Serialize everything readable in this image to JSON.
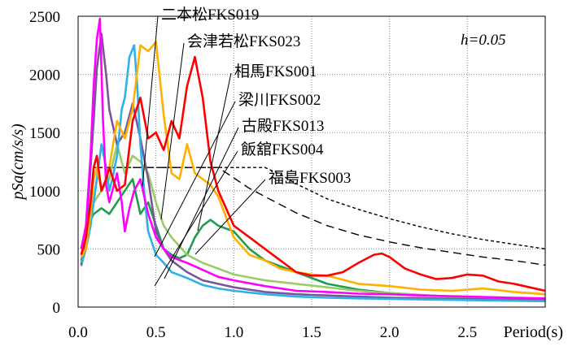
{
  "chart_data": {
    "type": "line",
    "xlabel": "Period(s)",
    "ylabel": "pSa(cm/s/s)",
    "xlim": [
      0,
      3.0
    ],
    "ylim": [
      0,
      2500
    ],
    "x_ticks": [
      "0.0",
      "0.5",
      "1.0",
      "1.5",
      "2.0",
      "2.5"
    ],
    "y_ticks": [
      "0",
      "500",
      "1000",
      "1500",
      "2000",
      "2500"
    ],
    "grid": "dotted",
    "annotation": "h=0.05",
    "series": [
      {
        "name": "二本松FKS019",
        "color": "#ff00ff",
        "label_at": [
          0.37,
          2180
        ],
        "x": [
          0.02,
          0.05,
          0.08,
          0.1,
          0.12,
          0.14,
          0.16,
          0.18,
          0.2,
          0.22,
          0.25,
          0.28,
          0.3,
          0.33,
          0.36,
          0.4,
          0.45,
          0.5,
          0.55,
          0.6,
          0.7,
          0.8,
          0.9,
          1.0,
          1.2,
          1.4,
          1.6,
          1.8,
          2.0,
          2.2,
          2.5,
          2.8,
          3.0
        ],
        "y": [
          500,
          700,
          1300,
          1900,
          2300,
          2480,
          1600,
          1050,
          900,
          1000,
          1150,
          900,
          650,
          850,
          1000,
          1100,
          800,
          600,
          500,
          430,
          380,
          320,
          260,
          230,
          180,
          140,
          130,
          115,
          110,
          100,
          90,
          80,
          75
        ]
      },
      {
        "name": "会津若松FKS023",
        "color": "#ffb000",
        "label_at": [
          0.55,
          2070
        ],
        "x": [
          0.02,
          0.05,
          0.08,
          0.1,
          0.12,
          0.15,
          0.18,
          0.2,
          0.25,
          0.3,
          0.35,
          0.4,
          0.45,
          0.5,
          0.55,
          0.6,
          0.65,
          0.7,
          0.75,
          0.8,
          0.85,
          0.9,
          1.0,
          1.1,
          1.2,
          1.3,
          1.4,
          1.5,
          1.6,
          1.8,
          2.0,
          2.2,
          2.4,
          2.6,
          2.8,
          3.0
        ],
        "y": [
          430,
          500,
          800,
          1100,
          1200,
          1000,
          1100,
          1200,
          1600,
          1450,
          1700,
          2250,
          2200,
          2280,
          1650,
          1150,
          1100,
          1400,
          1150,
          1100,
          1050,
          950,
          600,
          450,
          400,
          330,
          300,
          280,
          270,
          200,
          180,
          150,
          140,
          160,
          130,
          110
        ]
      },
      {
        "name": "相馬FKS001",
        "color": "#ff0000",
        "label_at": [
          0.8,
          1920
        ],
        "x": [
          0.02,
          0.05,
          0.08,
          0.1,
          0.12,
          0.15,
          0.18,
          0.2,
          0.25,
          0.3,
          0.35,
          0.4,
          0.45,
          0.5,
          0.55,
          0.6,
          0.65,
          0.7,
          0.75,
          0.8,
          0.85,
          0.9,
          1.0,
          1.1,
          1.2,
          1.3,
          1.4,
          1.5,
          1.6,
          1.7,
          1.8,
          1.9,
          1.95,
          2.0,
          2.1,
          2.2,
          2.3,
          2.4,
          2.5,
          2.6,
          2.7,
          2.8,
          2.9,
          3.0
        ],
        "y": [
          450,
          600,
          900,
          1200,
          1300,
          1000,
          1100,
          1200,
          1000,
          1050,
          1600,
          1800,
          1450,
          1500,
          1350,
          1600,
          1450,
          1900,
          2150,
          1800,
          1250,
          1000,
          700,
          600,
          500,
          400,
          300,
          270,
          270,
          300,
          380,
          450,
          460,
          430,
          330,
          280,
          240,
          250,
          280,
          270,
          220,
          200,
          170,
          140
        ]
      },
      {
        "name": "梁川FKS002",
        "color": "#2eb0e8",
        "label_at": [
          0.8,
          1630
        ],
        "x": [
          0.02,
          0.05,
          0.08,
          0.1,
          0.12,
          0.15,
          0.18,
          0.2,
          0.22,
          0.25,
          0.28,
          0.3,
          0.33,
          0.36,
          0.38,
          0.4,
          0.43,
          0.45,
          0.5,
          0.55,
          0.6,
          0.7,
          0.8,
          0.9,
          1.0,
          1.2,
          1.4,
          1.6,
          1.8,
          2.0,
          2.5,
          3.0
        ],
        "y": [
          380,
          500,
          700,
          900,
          1100,
          1400,
          1200,
          1000,
          1100,
          1300,
          1700,
          1800,
          2150,
          2250,
          1900,
          1400,
          900,
          650,
          450,
          380,
          300,
          250,
          190,
          160,
          140,
          110,
          90,
          80,
          75,
          70,
          60,
          50
        ]
      },
      {
        "name": "古殿FKS013",
        "color": "#7b559b",
        "label_at": [
          0.8,
          1430
        ],
        "x": [
          0.02,
          0.05,
          0.08,
          0.1,
          0.12,
          0.15,
          0.18,
          0.2,
          0.25,
          0.3,
          0.35,
          0.4,
          0.45,
          0.5,
          0.55,
          0.6,
          0.7,
          0.8,
          0.9,
          1.0,
          1.2,
          1.4,
          1.6,
          2.0,
          2.5,
          3.0
        ],
        "y": [
          360,
          600,
          1200,
          1600,
          2050,
          2350,
          2000,
          1700,
          1400,
          1500,
          1750,
          1450,
          1100,
          650,
          500,
          400,
          300,
          230,
          200,
          170,
          130,
          110,
          100,
          80,
          70,
          60
        ]
      },
      {
        "name": "飯舘FKS004",
        "color": "#99cc66",
        "label_at": [
          0.8,
          1260
        ],
        "x": [
          0.02,
          0.05,
          0.08,
          0.1,
          0.15,
          0.2,
          0.25,
          0.3,
          0.35,
          0.4,
          0.45,
          0.5,
          0.55,
          0.6,
          0.7,
          0.8,
          0.9,
          1.0,
          1.2,
          1.4,
          1.6,
          1.8,
          2.0,
          2.5,
          3.0
        ],
        "y": [
          350,
          500,
          700,
          900,
          1000,
          1100,
          1400,
          1150,
          1300,
          1250,
          1150,
          900,
          700,
          600,
          450,
          380,
          330,
          280,
          230,
          200,
          170,
          140,
          120,
          80,
          60
        ]
      },
      {
        "name": "福島FKS003",
        "color": "#1f9e4d",
        "label_at": [
          0.8,
          1080
        ],
        "x": [
          0.02,
          0.05,
          0.08,
          0.1,
          0.15,
          0.2,
          0.25,
          0.3,
          0.35,
          0.4,
          0.45,
          0.5,
          0.55,
          0.6,
          0.65,
          0.7,
          0.75,
          0.8,
          0.85,
          0.9,
          1.0,
          1.1,
          1.2,
          1.4,
          1.6,
          1.8,
          2.0,
          2.5,
          3.0
        ],
        "y": [
          400,
          550,
          750,
          800,
          850,
          800,
          900,
          1000,
          1100,
          800,
          900,
          700,
          500,
          450,
          420,
          450,
          600,
          700,
          750,
          700,
          650,
          500,
          400,
          300,
          200,
          150,
          120,
          80,
          60
        ]
      },
      {
        "name": "",
        "color": "#000000",
        "dash": "long",
        "x": [
          0.1,
          0.5,
          0.9,
          1.0,
          1.1,
          1.2,
          1.4,
          1.6,
          1.8,
          2.0,
          2.2,
          2.4,
          2.6,
          2.8,
          3.0
        ],
        "y": [
          1200,
          1200,
          1200,
          1110,
          1020,
          950,
          810,
          700,
          620,
          560,
          510,
          470,
          430,
          400,
          360
        ]
      },
      {
        "name": "",
        "color": "#000000",
        "dash": "short",
        "x": [
          0.1,
          0.5,
          1.0,
          1.2,
          1.3,
          1.4,
          1.6,
          1.8,
          2.0,
          2.2,
          2.4,
          2.6,
          2.8,
          3.0
        ],
        "y": [
          1200,
          1200,
          1200,
          1200,
          1140,
          1060,
          930,
          840,
          760,
          690,
          630,
          580,
          540,
          500
        ]
      }
    ]
  }
}
